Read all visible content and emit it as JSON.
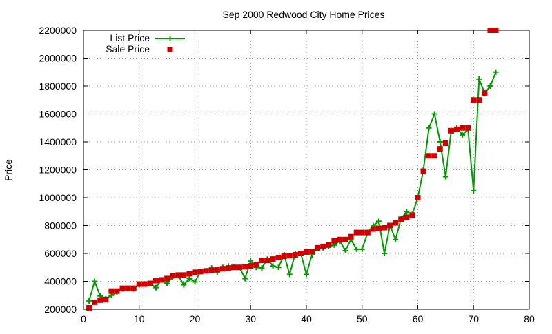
{
  "chart_data": {
    "type": "line",
    "title": "Sep 2000 Redwood City Home Prices",
    "xlabel": "",
    "ylabel": "Price",
    "xlim": [
      0,
      80
    ],
    "ylim": [
      200000,
      2200000
    ],
    "xticks": [
      0,
      10,
      20,
      30,
      40,
      50,
      60,
      70,
      80
    ],
    "yticks": [
      200000,
      400000,
      600000,
      800000,
      1000000,
      1200000,
      1400000,
      1600000,
      1800000,
      2000000,
      2200000
    ],
    "xtick_labels": [
      "0",
      "10",
      "20",
      "30",
      "40",
      "50",
      "60",
      "70",
      "80"
    ],
    "ytick_labels": [
      "200000",
      "400000",
      "600000",
      "800000",
      "1000000",
      "1200000",
      "1400000",
      "1600000",
      "1800000",
      "2000000",
      "2200000"
    ],
    "grid": true,
    "legend_position": "top-left",
    "series": [
      {
        "name": "List Price",
        "style": "line-with-plus-markers",
        "color": "#009900",
        "x": [
          1,
          2,
          3,
          4,
          5,
          6,
          7,
          8,
          9,
          10,
          11,
          12,
          13,
          14,
          15,
          16,
          17,
          18,
          19,
          20,
          21,
          22,
          23,
          24,
          25,
          26,
          27,
          28,
          29,
          30,
          31,
          32,
          33,
          34,
          35,
          36,
          37,
          38,
          39,
          40,
          41,
          42,
          43,
          44,
          45,
          46,
          47,
          48,
          49,
          50,
          51,
          52,
          53,
          54,
          55,
          56,
          57,
          58,
          59,
          60,
          61,
          62,
          63,
          64,
          65,
          66,
          67,
          68,
          69,
          70,
          71,
          72,
          73,
          74
        ],
        "y": [
          260000,
          400000,
          295000,
          275000,
          300000,
          320000,
          345000,
          350000,
          345000,
          375000,
          380000,
          385000,
          355000,
          410000,
          385000,
          430000,
          440000,
          375000,
          420000,
          395000,
          470000,
          475000,
          495000,
          465000,
          500000,
          510000,
          505000,
          500000,
          420000,
          545000,
          500000,
          495000,
          560000,
          510000,
          500000,
          590000,
          450000,
          600000,
          600000,
          450000,
          590000,
          640000,
          640000,
          650000,
          660000,
          690000,
          620000,
          700000,
          630000,
          630000,
          750000,
          800000,
          830000,
          600000,
          800000,
          700000,
          850000,
          900000,
          880000,
          1000000,
          1200000,
          1500000,
          1600000,
          1400000,
          1150000,
          1480000,
          1500000,
          1450000,
          1490000,
          1050000,
          1850000,
          1750000,
          1800000,
          1900000
        ]
      },
      {
        "name": "Sale Price",
        "style": "square-markers",
        "color": "#cc0000",
        "x": [
          1,
          2,
          3,
          4,
          5,
          6,
          7,
          8,
          9,
          10,
          11,
          12,
          13,
          14,
          15,
          16,
          17,
          18,
          19,
          20,
          21,
          22,
          23,
          24,
          25,
          26,
          27,
          28,
          29,
          30,
          31,
          32,
          33,
          34,
          35,
          36,
          37,
          38,
          39,
          40,
          41,
          42,
          43,
          44,
          45,
          46,
          47,
          48,
          49,
          50,
          51,
          52,
          53,
          54,
          55,
          56,
          57,
          58,
          59,
          60,
          61,
          62,
          63,
          64,
          65,
          66,
          67,
          68,
          69,
          70,
          71,
          72,
          73,
          74
        ],
        "y": [
          210000,
          250000,
          265000,
          270000,
          330000,
          330000,
          350000,
          350000,
          350000,
          380000,
          380000,
          385000,
          405000,
          410000,
          420000,
          440000,
          445000,
          445000,
          455000,
          465000,
          470000,
          475000,
          480000,
          485000,
          490000,
          495000,
          500000,
          500000,
          505000,
          510000,
          520000,
          550000,
          550000,
          560000,
          570000,
          580000,
          585000,
          590000,
          600000,
          610000,
          615000,
          640000,
          650000,
          660000,
          690000,
          700000,
          700000,
          720000,
          750000,
          750000,
          750000,
          775000,
          780000,
          785000,
          800000,
          820000,
          845000,
          860000,
          875000,
          1000000,
          1190000,
          1300000,
          1300000,
          1350000,
          1390000,
          1480000,
          1490000,
          1500000,
          1500000,
          1700000,
          1700000,
          1750000,
          2200000,
          2200000
        ]
      }
    ]
  }
}
